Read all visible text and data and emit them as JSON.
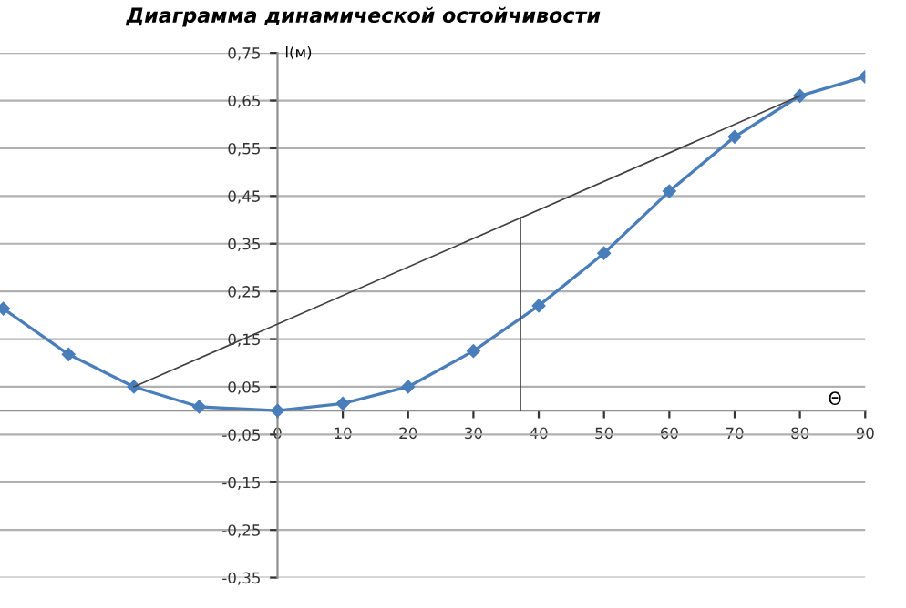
{
  "chart_data": {
    "type": "line",
    "title": "Диаграмма динамической остойчивости",
    "xlabel": "Θ",
    "ylabel": "l(м)",
    "xlim": [
      -42.5,
      90
    ],
    "ylim": [
      -0.35,
      0.75
    ],
    "xticks": [
      0,
      10,
      20,
      30,
      40,
      50,
      60,
      70,
      80,
      90
    ],
    "yticks": [
      {
        "value": -0.35,
        "label": "-0,35"
      },
      {
        "value": -0.25,
        "label": "-0,25"
      },
      {
        "value": -0.15,
        "label": "-0,15"
      },
      {
        "value": -0.05,
        "label": "-0,05"
      },
      {
        "value": 0.05,
        "label": "0,05"
      },
      {
        "value": 0.15,
        "label": "0,15"
      },
      {
        "value": 0.25,
        "label": "0,25"
      },
      {
        "value": 0.35,
        "label": "0,35"
      },
      {
        "value": 0.45,
        "label": "0,45"
      },
      {
        "value": 0.55,
        "label": "0,55"
      },
      {
        "value": 0.65,
        "label": "0,65"
      },
      {
        "value": 0.75,
        "label": "0,75"
      }
    ],
    "grid": "y",
    "marker": "diamond",
    "line_style": "solid",
    "series": [
      {
        "color": "#4a7ebb",
        "x": [
          -42,
          -32,
          -22,
          -12,
          0,
          10,
          20,
          30,
          40,
          50,
          60,
          70,
          80,
          90
        ],
        "values": [
          0.214,
          0.118,
          0.05,
          0.008,
          0,
          0.015,
          0.05,
          0.125,
          0.22,
          0.33,
          0.46,
          0.574,
          0.66,
          0.7
        ]
      },
      {
        "color": "#404040",
        "marker": "none",
        "x": [
          -22,
          80
        ],
        "values": [
          0.05,
          0.66
        ]
      },
      {
        "color": "#404040",
        "marker": "none",
        "x": [
          37.2,
          37.2
        ],
        "values": [
          0,
          0.405
        ]
      }
    ]
  }
}
